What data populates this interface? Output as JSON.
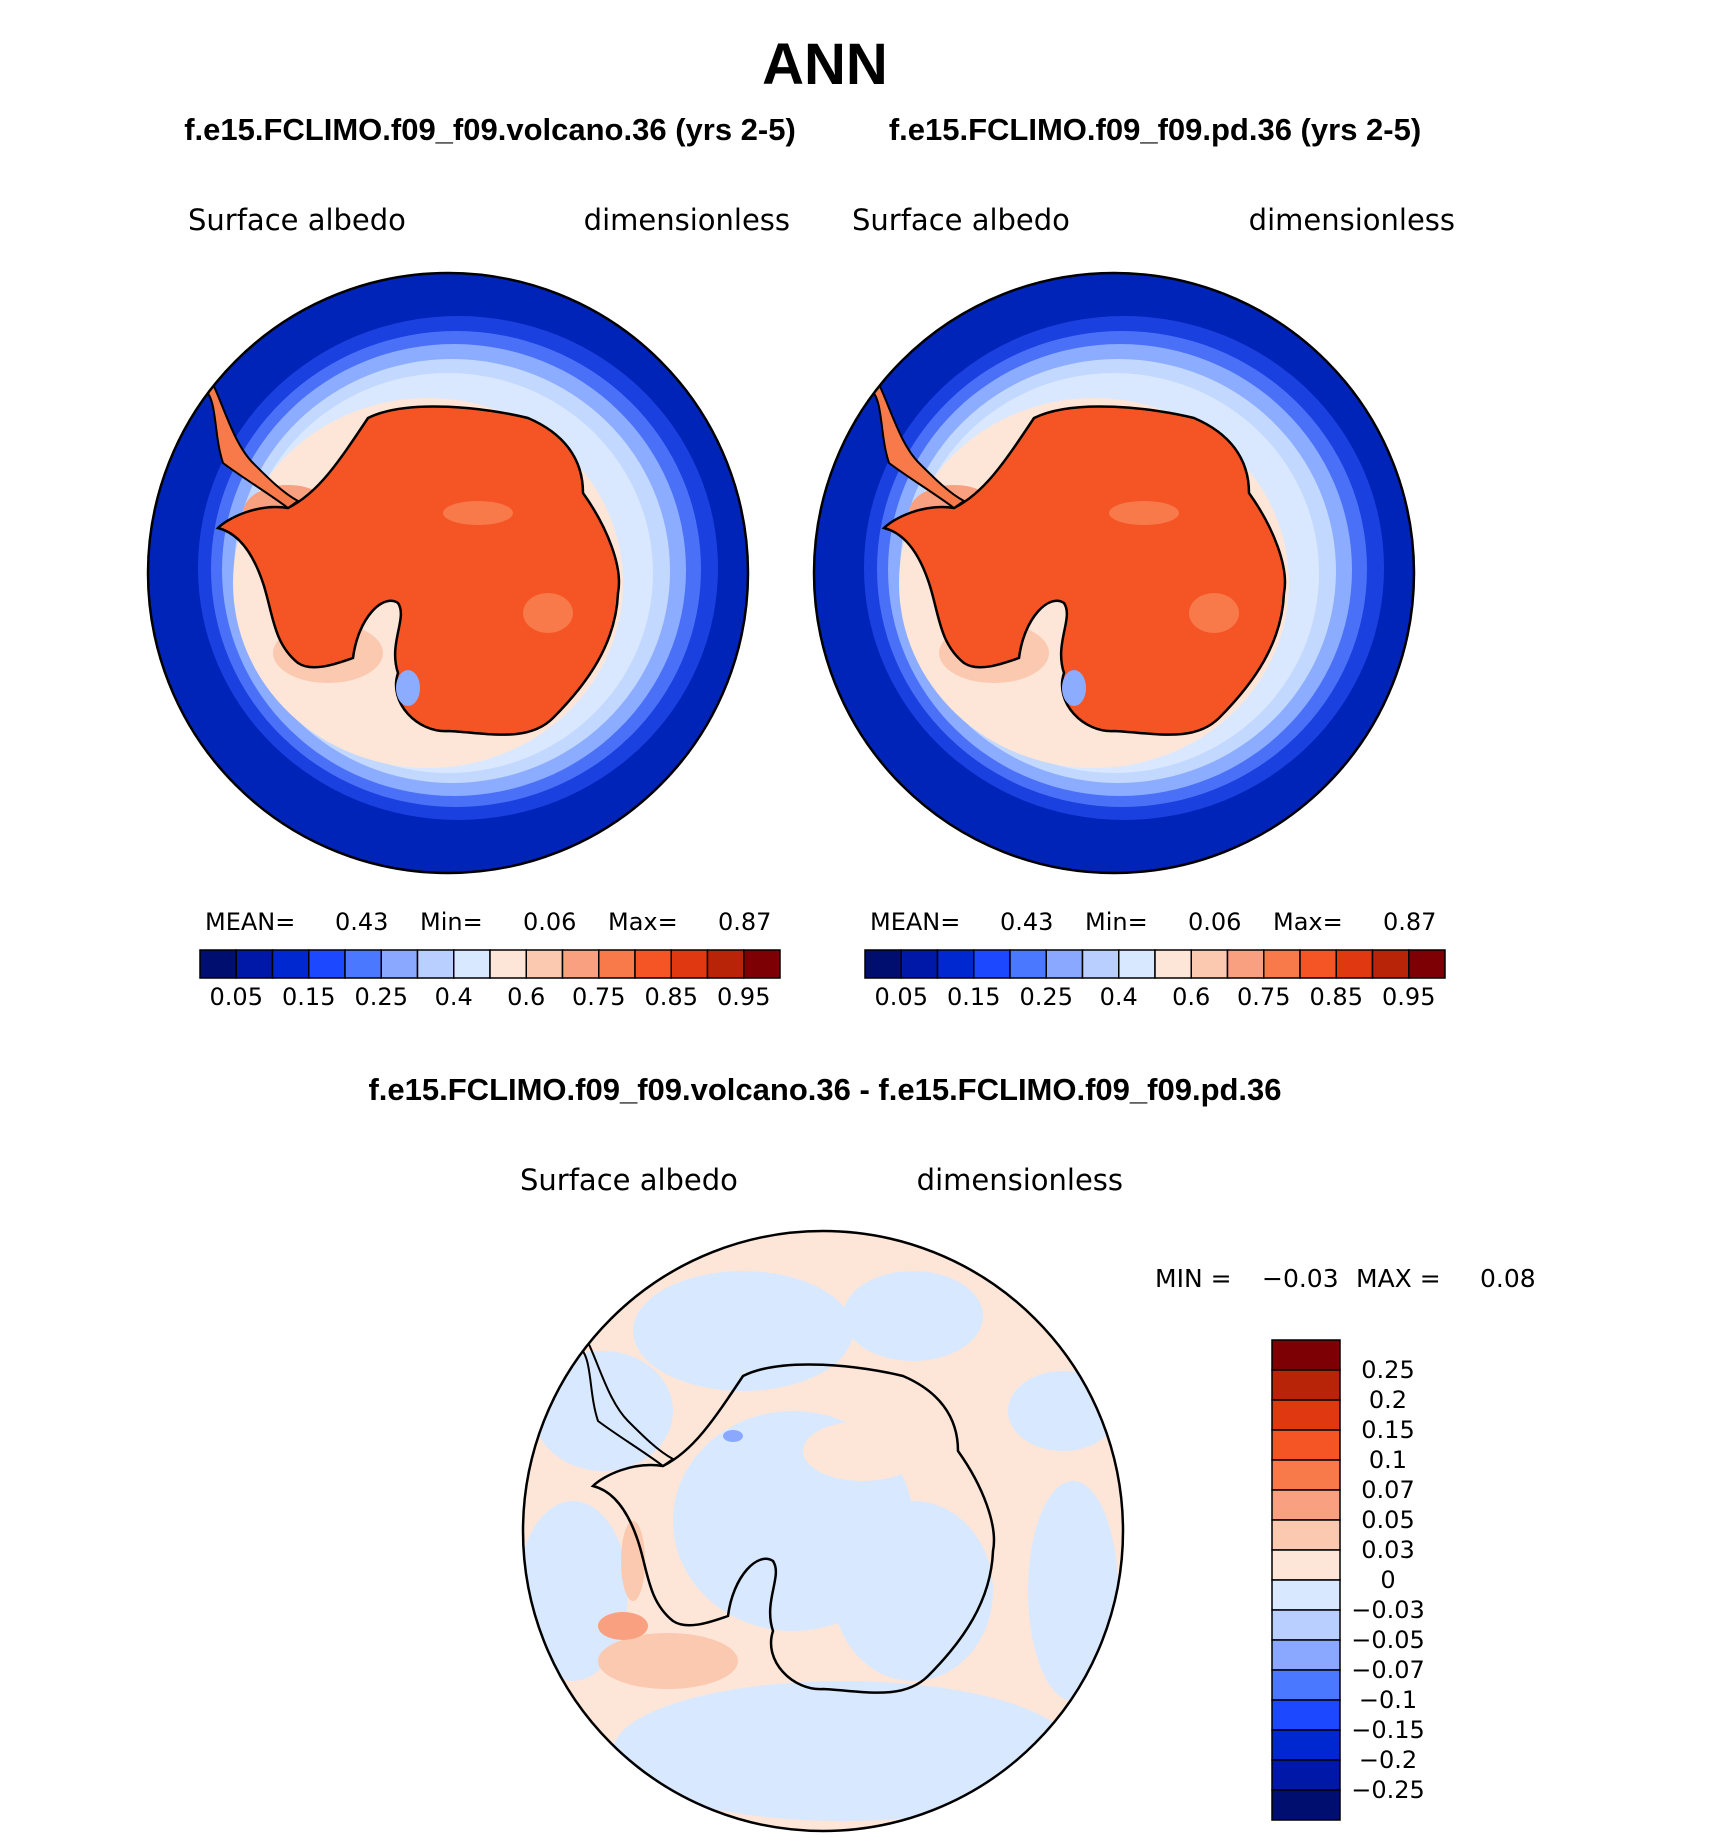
{
  "title": "ANN",
  "panels": [
    {
      "title": "f.e15.FCLIMO.f09_f09.volcano.36 (yrs 2-5)",
      "left_label": "Surface albedo",
      "right_label": "dimensionless",
      "stats": {
        "mean_label": "MEAN=",
        "mean": "0.43",
        "min_label": "Min=",
        "min": "0.06",
        "max_label": "Max=",
        "max": "0.87"
      }
    },
    {
      "title": "f.e15.FCLIMO.f09_f09.pd.36 (yrs 2-5)",
      "left_label": "Surface albedo",
      "right_label": "dimensionless",
      "stats": {
        "mean_label": "MEAN=",
        "mean": "0.43",
        "min_label": "Min=",
        "min": "0.06",
        "max_label": "Max=",
        "max": "0.87"
      }
    }
  ],
  "main_colorbar": {
    "labels": [
      "0.05",
      "0.15",
      "0.25",
      "0.4",
      "0.6",
      "0.75",
      "0.85",
      "0.95"
    ],
    "colors": [
      "#000e70",
      "#0018a8",
      "#0028d0",
      "#1c48ff",
      "#4a78ff",
      "#8aa8ff",
      "#b8cfff",
      "#d8e8ff",
      "#fde6d8",
      "#fbc8b0",
      "#f9a080",
      "#f87a4a",
      "#f55524",
      "#e03810",
      "#b82408",
      "#7d0005"
    ]
  },
  "diff_panel": {
    "title": "f.e15.FCLIMO.f09_f09.volcano.36 - f.e15.FCLIMO.f09_f09.pd.36",
    "left_label": "Surface albedo",
    "right_label": "dimensionless",
    "min_label": "MIN =",
    "min": "−0.03",
    "max_label": "MAX =",
    "max": "0.08"
  },
  "diff_colorbar": {
    "labels": [
      "0.25",
      "0.2",
      "0.15",
      "0.1",
      "0.07",
      "0.05",
      "0.03",
      "0",
      "−0.03",
      "−0.05",
      "−0.07",
      "−0.1",
      "−0.15",
      "−0.2",
      "−0.25"
    ],
    "colors": [
      "#7d0005",
      "#b82408",
      "#e03810",
      "#f55524",
      "#f87a4a",
      "#f9a080",
      "#fbc8b0",
      "#fde6d8",
      "#d8e8ff",
      "#b8cfff",
      "#8aa8ff",
      "#4a78ff",
      "#1c48ff",
      "#0028d0",
      "#0018a8",
      "#000e70"
    ]
  }
}
